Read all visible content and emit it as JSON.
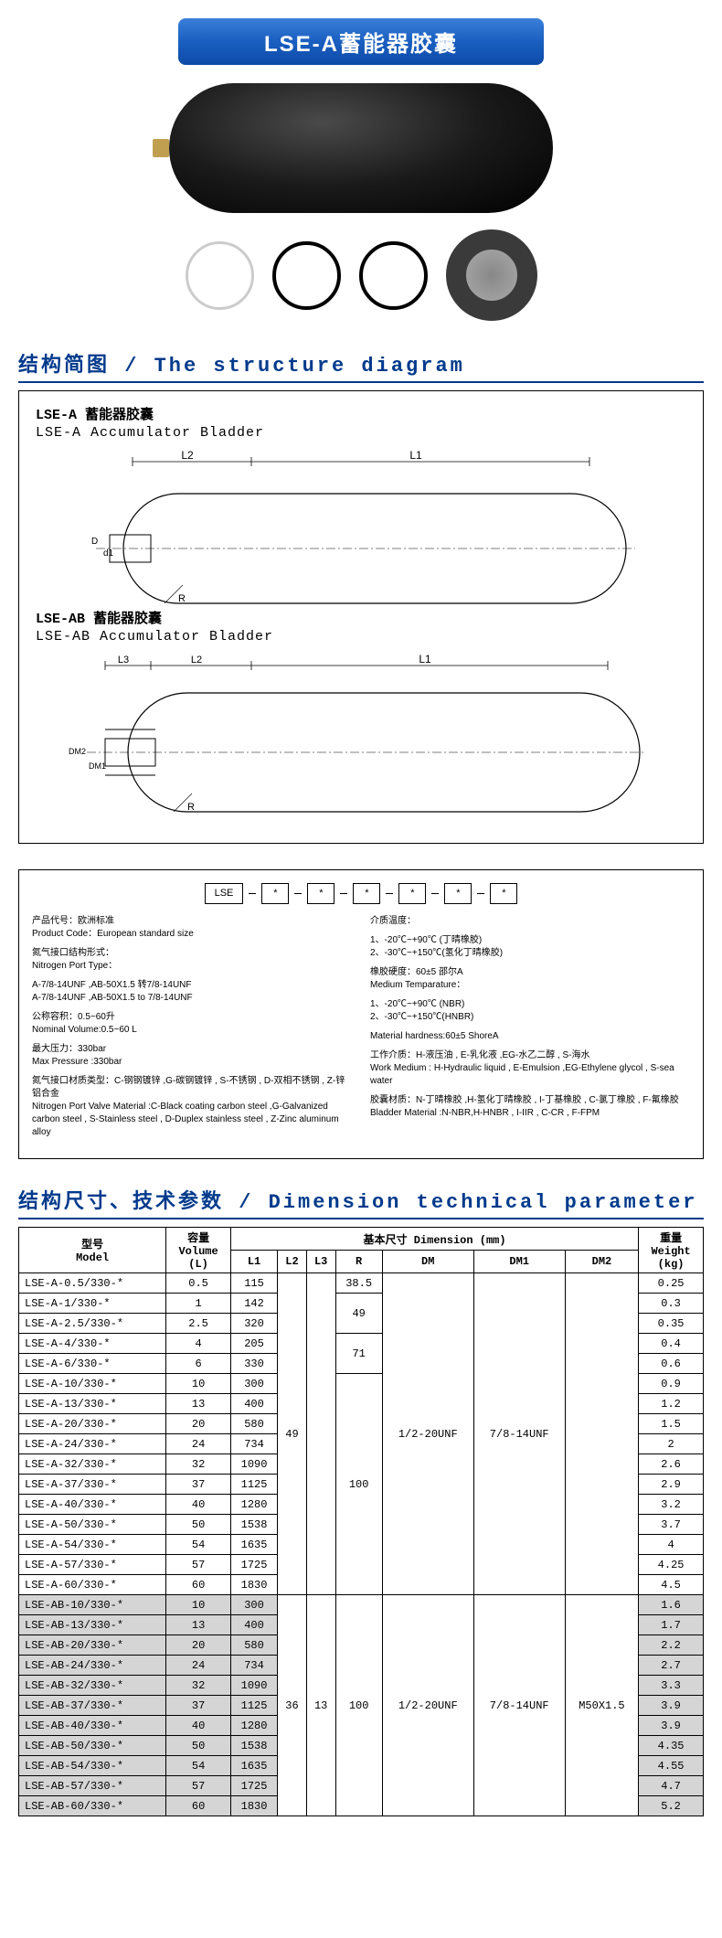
{
  "title": "LSE-A蓄能器胶囊",
  "section_structure": "结构简图 / The structure diagram",
  "section_dimension": "结构尺寸、技术参数 / Dimension technical parameter",
  "diagram": {
    "a_cn": "LSE-A 蓄能器胶囊",
    "a_en": "LSE-A Accumulator Bladder",
    "ab_cn": "LSE-AB 蓄能器胶囊",
    "ab_en": "LSE-AB Accumulator Bladder",
    "labels": {
      "L1": "L1",
      "L2": "L2",
      "L3": "L3",
      "D": "D",
      "d1": "d1",
      "R": "R",
      "DM1": "DM1",
      "DM2": "DM2"
    }
  },
  "spec": {
    "chain": [
      "LSE",
      "*",
      "*",
      "*",
      "*",
      "*",
      "*"
    ],
    "left": [
      {
        "cn": "产品代号：欧洲标准",
        "en": "Product Code：European standard size"
      },
      {
        "cn": "氮气接口结构形式：",
        "en": "Nitrogen Port Type："
      },
      {
        "cn": "A-7/8-14UNF ,AB-50X1.5 转7/8-14UNF",
        "en": "A-7/8-14UNF ,AB-50X1.5 to 7/8-14UNF"
      },
      {
        "cn": "公称容积：0.5~60升",
        "en": "Nominal Volume:0.5~60 L"
      },
      {
        "cn": "最大压力：330bar",
        "en": "Max Pressure :330bar"
      },
      {
        "cn": "氮气接口材质类型：C-钢钢镀锌 ,G-碳钢镀锌 , S-不锈钢 , D-双相不锈钢 , Z-锌铝合金",
        "en": "Nitrogen Port Valve Material :C-Black coating carbon steel ,G-Galvanized carbon steel , S-Stainless steel , D-Duplex stainless steel , Z-Zinc aluminum alloy"
      }
    ],
    "right": [
      {
        "cn": "介质温度：",
        "en": ""
      },
      {
        "cn": "1、-20℃~+90℃ (丁晴橡胶)",
        "en": "2、-30℃~+150℃(氢化丁晴橡胶)"
      },
      {
        "cn": "橡胶硬度：60±5 邵尔A",
        "en": "Medium Temparature："
      },
      {
        "cn": "1、-20℃~+90℃ (NBR)",
        "en": "2、-30℃~+150℃(HNBR)"
      },
      {
        "cn": "",
        "en": "Material hardness:60±5 ShoreA"
      },
      {
        "cn": "工作介质：H-液压油 , E-乳化液 ,EG-水乙二醇 , S-海水",
        "en": "Work Medium : H-Hydraulic liquid , E-Emulsion ,EG-Ethylene glycol , S-sea water"
      },
      {
        "cn": "胶囊材质：N-丁晴橡胶 ,H-氢化丁晴橡胶 , I-丁基橡胶 , C-氯丁橡胶 , F-氟橡胶",
        "en": "Bladder Material :N-NBR,H-HNBR , I-IIR , C-CR , F-FPM"
      }
    ]
  },
  "table": {
    "colors": {
      "ab_row_bg": "#d5d5d5"
    },
    "headers": {
      "model": "型号",
      "model_en": "Model",
      "volume": "容量",
      "volume_en": "Volume",
      "volume_unit": "(L)",
      "dim": "基本尺寸 Dimension (mm)",
      "weight": "重量",
      "weight_en": "Weight",
      "weight_unit": "(kg)",
      "L1": "L1",
      "L2": "L2",
      "L3": "L3",
      "R": "R",
      "DM": "DM",
      "DM1": "DM1",
      "DM2": "DM2"
    },
    "group_a": {
      "L2": "49",
      "L3": "",
      "R1": "38.5",
      "R2": "49",
      "R3": "71",
      "R4": "100",
      "DM": "1/2-20UNF",
      "DM1": "7/8-14UNF",
      "DM2": ""
    },
    "group_ab": {
      "L2": "36",
      "L3": "13",
      "R": "100",
      "DM": "1/2-20UNF",
      "DM1": "7/8-14UNF",
      "DM2": "M50X1.5"
    },
    "rows_a": [
      {
        "m": "LSE-A-0.5/330-*",
        "v": "0.5",
        "l1": "115",
        "w": "0.25"
      },
      {
        "m": "LSE-A-1/330-*",
        "v": "1",
        "l1": "142",
        "w": "0.3"
      },
      {
        "m": "LSE-A-2.5/330-*",
        "v": "2.5",
        "l1": "320",
        "w": "0.35"
      },
      {
        "m": "LSE-A-4/330-*",
        "v": "4",
        "l1": "205",
        "w": "0.4"
      },
      {
        "m": "LSE-A-6/330-*",
        "v": "6",
        "l1": "330",
        "w": "0.6"
      },
      {
        "m": "LSE-A-10/330-*",
        "v": "10",
        "l1": "300",
        "w": "0.9"
      },
      {
        "m": "LSE-A-13/330-*",
        "v": "13",
        "l1": "400",
        "w": "1.2"
      },
      {
        "m": "LSE-A-20/330-*",
        "v": "20",
        "l1": "580",
        "w": "1.5"
      },
      {
        "m": "LSE-A-24/330-*",
        "v": "24",
        "l1": "734",
        "w": "2"
      },
      {
        "m": "LSE-A-32/330-*",
        "v": "32",
        "l1": "1090",
        "w": "2.6"
      },
      {
        "m": "LSE-A-37/330-*",
        "v": "37",
        "l1": "1125",
        "w": "2.9"
      },
      {
        "m": "LSE-A-40/330-*",
        "v": "40",
        "l1": "1280",
        "w": "3.2"
      },
      {
        "m": "LSE-A-50/330-*",
        "v": "50",
        "l1": "1538",
        "w": "3.7"
      },
      {
        "m": "LSE-A-54/330-*",
        "v": "54",
        "l1": "1635",
        "w": "4"
      },
      {
        "m": "LSE-A-57/330-*",
        "v": "57",
        "l1": "1725",
        "w": "4.25"
      },
      {
        "m": "LSE-A-60/330-*",
        "v": "60",
        "l1": "1830",
        "w": "4.5"
      }
    ],
    "rows_ab": [
      {
        "m": "LSE-AB-10/330-*",
        "v": "10",
        "l1": "300",
        "w": "1.6"
      },
      {
        "m": "LSE-AB-13/330-*",
        "v": "13",
        "l1": "400",
        "w": "1.7"
      },
      {
        "m": "LSE-AB-20/330-*",
        "v": "20",
        "l1": "580",
        "w": "2.2"
      },
      {
        "m": "LSE-AB-24/330-*",
        "v": "24",
        "l1": "734",
        "w": "2.7"
      },
      {
        "m": "LSE-AB-32/330-*",
        "v": "32",
        "l1": "1090",
        "w": "3.3"
      },
      {
        "m": "LSE-AB-37/330-*",
        "v": "37",
        "l1": "1125",
        "w": "3.9"
      },
      {
        "m": "LSE-AB-40/330-*",
        "v": "40",
        "l1": "1280",
        "w": "3.9"
      },
      {
        "m": "LSE-AB-50/330-*",
        "v": "50",
        "l1": "1538",
        "w": "4.35"
      },
      {
        "m": "LSE-AB-54/330-*",
        "v": "54",
        "l1": "1635",
        "w": "4.55"
      },
      {
        "m": "LSE-AB-57/330-*",
        "v": "57",
        "l1": "1725",
        "w": "4.7"
      },
      {
        "m": "LSE-AB-60/330-*",
        "v": "60",
        "l1": "1830",
        "w": "5.2"
      }
    ]
  }
}
